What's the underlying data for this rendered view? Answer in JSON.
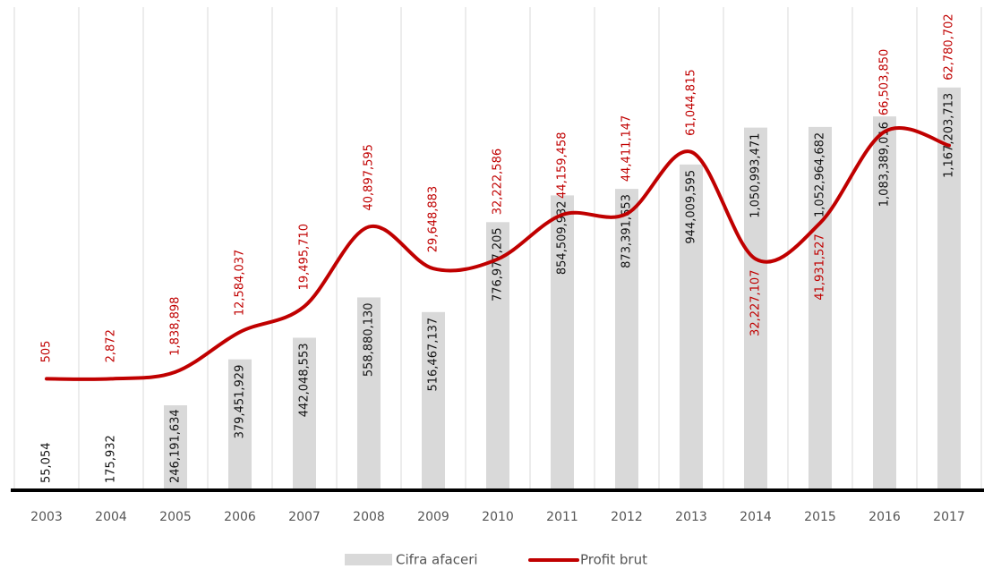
{
  "chart_data": {
    "type": "bar_line",
    "categories": [
      "2003",
      "2004",
      "2005",
      "2006",
      "2007",
      "2008",
      "2009",
      "2010",
      "2011",
      "2012",
      "2013",
      "2014",
      "2015",
      "2016",
      "2017"
    ],
    "ylim": [
      0,
      1400000000
    ],
    "y2lim": [
      -30000000,
      100000000
    ],
    "series": [
      {
        "name": "Cifra afaceri",
        "type": "bar",
        "color": "#d9d9d9",
        "values": [
          55054,
          175932,
          246191634,
          379451929,
          442048553,
          558880130,
          516467137,
          776977205,
          854509932,
          873391653,
          944009595,
          1050993471,
          1052964682,
          1083389016,
          1167203713
        ],
        "value_labels": [
          "55,054",
          "175,932",
          "246,191,634",
          "379,451,929",
          "442,048,553",
          "558,880,130",
          "516,467,137",
          "776,977,205",
          "854,509,932",
          "873,391,653",
          "944,009,595",
          "1,050,993,471",
          "1,052,964,682",
          "1,083,389,016",
          "1,167,203,713"
        ]
      },
      {
        "name": "Profit brut",
        "type": "line",
        "axis": "y2",
        "color": "#c00000",
        "values": [
          505,
          2872,
          1838898,
          12584037,
          19495710,
          40897595,
          29648883,
          32222586,
          44159458,
          44411147,
          61044815,
          32227107,
          41931527,
          66503850,
          62780702
        ],
        "value_labels": [
          "505",
          "2,872",
          "1,838,898",
          "12,584,037",
          "19,495,710",
          "40,897,595",
          "29,648,883",
          "32,222,586",
          "44,159,458",
          "44,411,147",
          "61,044,815",
          "32,227,107",
          "41,931,527",
          "66,503,850",
          "62,780,702"
        ]
      }
    ]
  }
}
